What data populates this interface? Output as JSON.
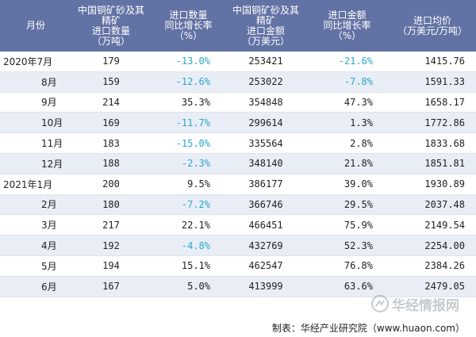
{
  "headers": [
    "月份",
    "中国铜矿砂及其\n精矿\n进口数量\n（万吨）",
    "进口数量\n同比增长率\n（%）",
    "中国铜矿砂及其\n精矿\n进口金额\n（万美元）",
    "进口金额\n同比增长率\n（%）",
    "进口均价\n（万美元/万吨）"
  ],
  "rows": [
    {
      "month": "2020年7月",
      "qty": "179",
      "qty_growth": "-13.0%",
      "amount": "253421",
      "amount_growth": "-21.6%",
      "price": "1415.76"
    },
    {
      "month": "8月",
      "qty": "159",
      "qty_growth": "-12.6%",
      "amount": "253022",
      "amount_growth": "-7.8%",
      "price": "1591.33"
    },
    {
      "month": "9月",
      "qty": "214",
      "qty_growth": "35.3%",
      "amount": "354848",
      "amount_growth": "47.3%",
      "price": "1658.17"
    },
    {
      "month": "10月",
      "qty": "169",
      "qty_growth": "-11.7%",
      "amount": "299614",
      "amount_growth": "1.3%",
      "price": "1772.86"
    },
    {
      "month": "11月",
      "qty": "183",
      "qty_growth": "-15.0%",
      "amount": "335564",
      "amount_growth": "2.8%",
      "price": "1833.68"
    },
    {
      "month": "12月",
      "qty": "188",
      "qty_growth": "-2.3%",
      "amount": "348140",
      "amount_growth": "21.8%",
      "price": "1851.81"
    },
    {
      "month": "2021年1月",
      "qty": "200",
      "qty_growth": "9.5%",
      "amount": "386177",
      "amount_growth": "39.0%",
      "price": "1930.89"
    },
    {
      "month": "2月",
      "qty": "180",
      "qty_growth": "-7.2%",
      "amount": "366746",
      "amount_growth": "29.5%",
      "price": "2037.48"
    },
    {
      "month": "3月",
      "qty": "217",
      "qty_growth": "22.1%",
      "amount": "466451",
      "amount_growth": "75.9%",
      "price": "2149.54"
    },
    {
      "month": "4月",
      "qty": "192",
      "qty_growth": "-4.8%",
      "amount": "432769",
      "amount_growth": "52.3%",
      "price": "2254.00"
    },
    {
      "month": "5月",
      "qty": "194",
      "qty_growth": "15.1%",
      "amount": "462547",
      "amount_growth": "76.8%",
      "price": "2384.26"
    },
    {
      "month": "6月",
      "qty": "167",
      "qty_growth": "5.0%",
      "amount": "413999",
      "amount_growth": "63.6%",
      "price": "2479.05"
    }
  ],
  "footer": "制表：华经产业研究院（www.huaon.com）",
  "watermark": "华经情报网",
  "colors": {
    "header_bg": "#6272a4",
    "negative": "#2aa8c8",
    "stripe": "#e9edf6"
  }
}
